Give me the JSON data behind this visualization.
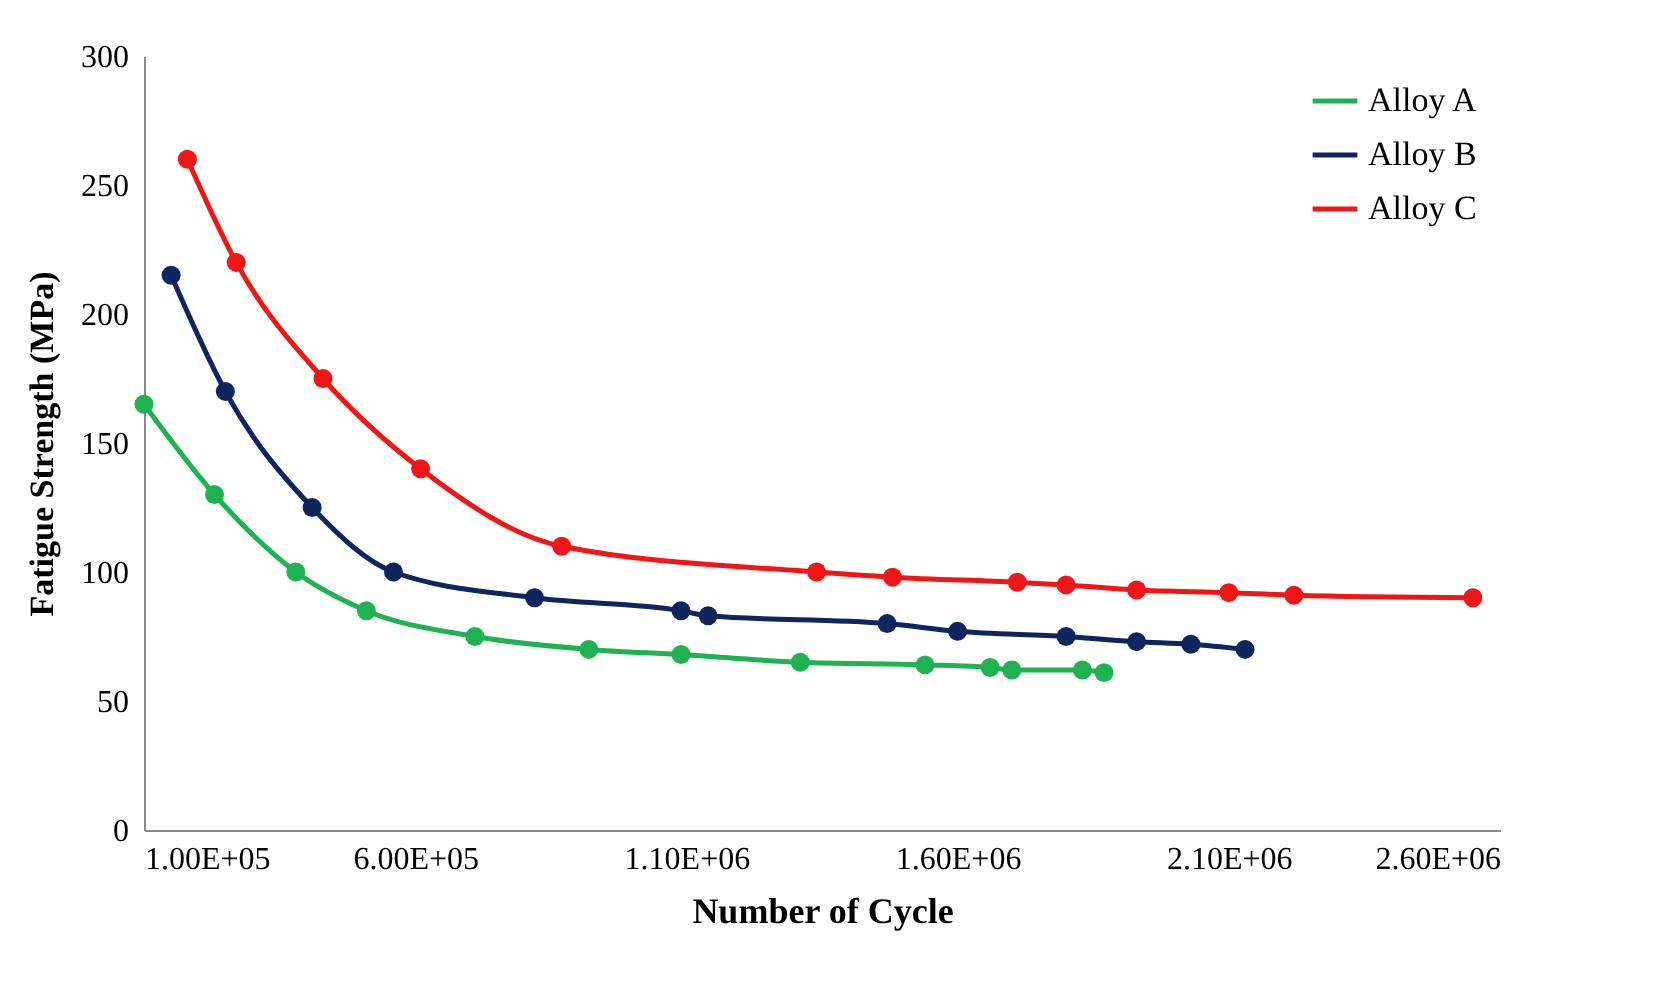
{
  "chart_data": {
    "type": "line",
    "xlabel": "Number of Cycle",
    "ylabel": "Fatigue Strength (MPa)",
    "xlim": [
      100000,
      2600000
    ],
    "xticks": [
      {
        "value": 100000,
        "label": "1.00E+05"
      },
      {
        "value": 600000,
        "label": "6.00E+05"
      },
      {
        "value": 1100000,
        "label": "1.10E+06"
      },
      {
        "value": 1600000,
        "label": "1.60E+06"
      },
      {
        "value": 2100000,
        "label": "2.10E+06"
      },
      {
        "value": 2600000,
        "label": "2.60E+06"
      }
    ],
    "ylim": [
      0,
      300
    ],
    "yticks": [
      0,
      50,
      100,
      150,
      200,
      250,
      300
    ],
    "grid": false,
    "legend": "top right",
    "marker": "circle",
    "line_style": "solid",
    "series": [
      {
        "name": "Alloy A",
        "color": "#1fb251",
        "x": [
          100000,
          230000,
          380000,
          510000,
          710000,
          920000,
          1090000,
          1310000,
          1540000,
          1660000,
          1700000,
          1830000,
          1870000
        ],
        "values": [
          165,
          130,
          100,
          85,
          75,
          70,
          68,
          65,
          64,
          63,
          62,
          62,
          61
        ]
      },
      {
        "name": "Alloy B",
        "color": "#10245e",
        "x": [
          150000,
          250000,
          410000,
          560000,
          820000,
          1090000,
          1140000,
          1470000,
          1600000,
          1800000,
          1930000,
          2030000,
          2130000
        ],
        "values": [
          215,
          170,
          125,
          100,
          90,
          85,
          83,
          80,
          77,
          75,
          73,
          72,
          70
        ]
      },
      {
        "name": "Alloy C",
        "color": "#f01616",
        "x": [
          180000,
          270000,
          430000,
          610000,
          870000,
          1340000,
          1480000,
          1710000,
          1800000,
          1930000,
          2100000,
          2220000,
          2550000
        ],
        "values": [
          260,
          220,
          175,
          140,
          110,
          100,
          98,
          96,
          95,
          93,
          92,
          91,
          90
        ]
      }
    ]
  }
}
